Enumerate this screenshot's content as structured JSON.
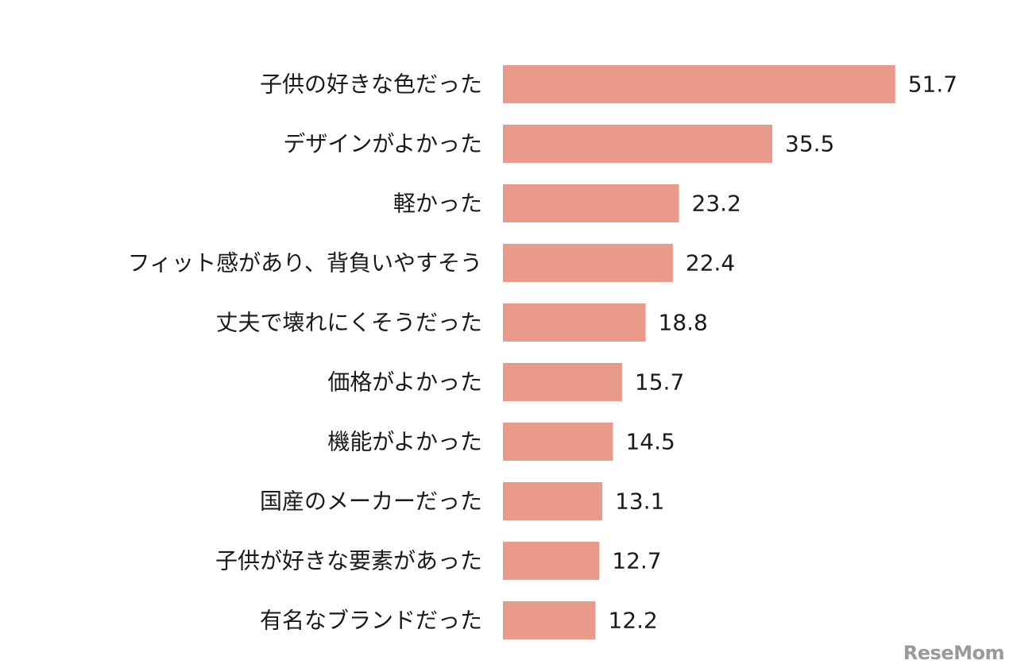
{
  "chart_data": {
    "type": "bar",
    "orientation": "horizontal",
    "categories": [
      "子供の好きな色だった",
      "デザインがよかった",
      "軽かった",
      "フィット感があり、背負いやすそう",
      "丈夫で壊れにくそうだった",
      "価格がよかった",
      "機能がよかった",
      "国産のメーカーだった",
      "子供が好きな要素があった",
      "有名なブランドだった"
    ],
    "values": [
      51.7,
      35.5,
      23.2,
      22.4,
      18.8,
      15.7,
      14.5,
      13.1,
      12.7,
      12.2
    ],
    "title": "",
    "xlabel": "",
    "ylabel": "",
    "grid": false,
    "bar_color": "#e99a8b"
  },
  "watermark": "ReseMom"
}
